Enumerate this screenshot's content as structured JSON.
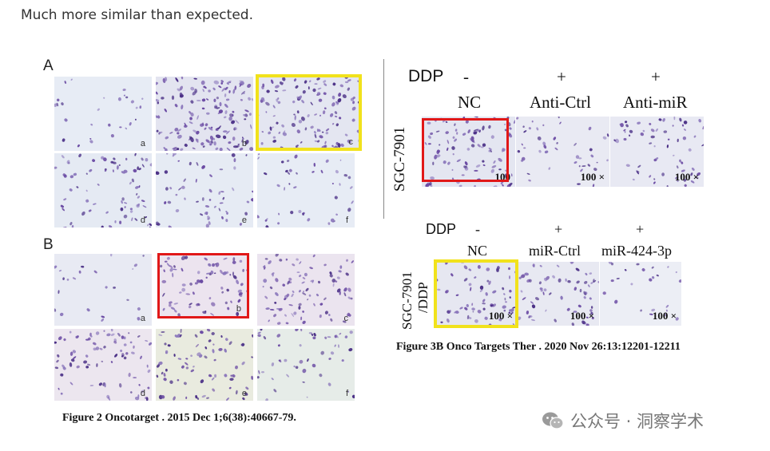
{
  "intro_text": "Much more similar than expected.",
  "figure2": {
    "panel_a_letter": "A",
    "panel_b_letter": "B",
    "panel_a_sublabels": [
      "a",
      "b",
      "c",
      "d",
      "e",
      "f"
    ],
    "panel_b_sublabels": [
      "a",
      "b",
      "c",
      "d",
      "e",
      "f"
    ],
    "caption": "Figure 2 Oncotarget . 2015 Dec 1;6(38):40667-79."
  },
  "figure3_top": {
    "ddp_label": "DDP",
    "ddp_values": [
      "-",
      "+",
      "+"
    ],
    "groups": [
      "NC",
      "Anti-Ctrl",
      "Anti-miR"
    ],
    "row_label": "SGC-7901",
    "magnification": [
      "100",
      "100 ×",
      "100 ×"
    ]
  },
  "figure3_bottom": {
    "ddp_label": "DDP",
    "ddp_values": [
      "-",
      "+",
      "+"
    ],
    "groups": [
      "NC",
      "miR-Ctrl",
      "miR-424-3p"
    ],
    "row_label_1": "SGC-7901",
    "row_label_2": "/DDP",
    "magnification": [
      "100 ×",
      "100 ×",
      "100 ×"
    ]
  },
  "figure3_caption": "Figure 3B Onco Targets Ther . 2020 Nov 26:13:12201-12211",
  "watermark": {
    "text": "公众号 · 洞察学术",
    "icon": "wechat-icon"
  },
  "colors": {
    "highlight_yellow": "#f1e21c",
    "highlight_red": "#e11818",
    "stain_purple": "#5b3a8c",
    "background_blue": "#e6ecf4"
  }
}
